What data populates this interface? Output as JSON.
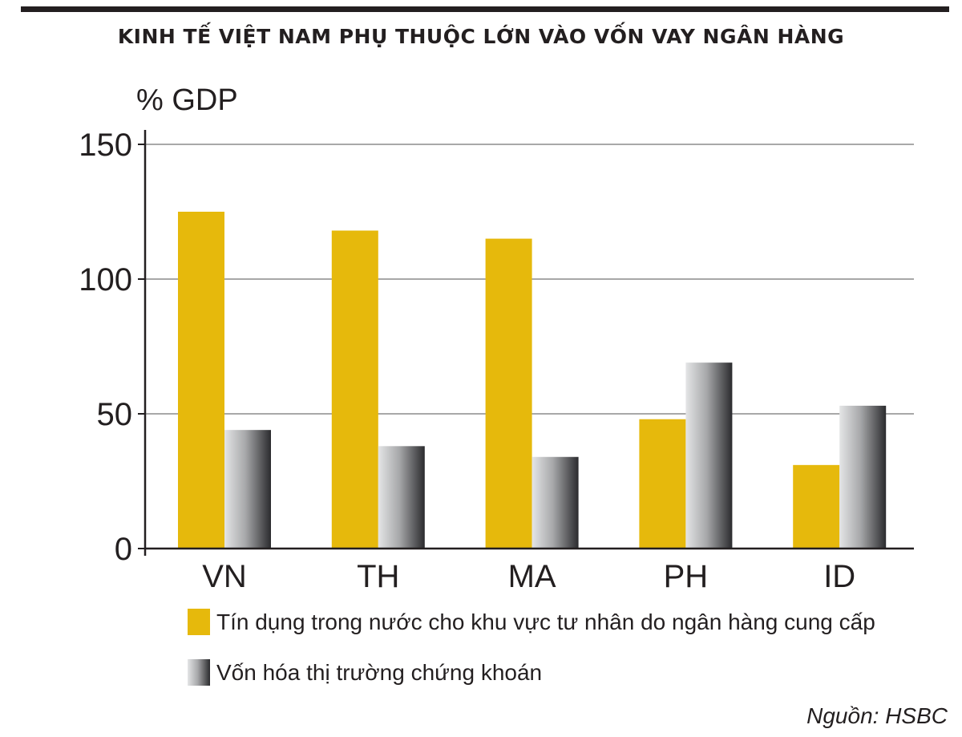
{
  "title": "KINH TẾ VIỆT NAM PHỤ THUỘC LỚN VÀO VỐN VAY NGÂN HÀNG",
  "source": "Nguồn: HSBC",
  "chart_data": {
    "type": "bar",
    "ylabel": "% GDP",
    "ylim": [
      0,
      150
    ],
    "yticks": [
      "0",
      "50",
      "100",
      "150"
    ],
    "grid": true,
    "legend_placement": "bottom",
    "categories": [
      "VN",
      "TH",
      "MA",
      "PH",
      "ID"
    ],
    "series": [
      {
        "name": "Tín dụng trong nước cho khu vực tư nhân do ngân hàng cung cấp",
        "color": "#e6b90c",
        "values": [
          125,
          118,
          115,
          48,
          31
        ]
      },
      {
        "name": "Vốn hóa thị trường chứng khoán",
        "color": "#8a8a8d",
        "values": [
          44,
          38,
          34,
          69,
          53
        ]
      }
    ]
  }
}
